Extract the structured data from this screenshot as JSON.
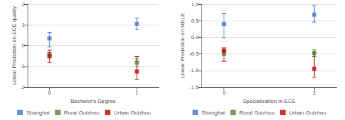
{
  "chart_data": [
    {
      "type": "scatter",
      "marker": "square",
      "grid": true,
      "legend": "bottom",
      "xlabel": "Bachelor's Degree",
      "ylabel": "Linear Prediction on ECE quality",
      "xlim": [
        -0.25,
        1.25
      ],
      "xticks": [
        0,
        1
      ],
      "ylim": [
        -2,
        2
      ],
      "yticks": [
        -2,
        -1,
        0,
        1,
        2
      ],
      "series": [
        {
          "name": "Shanghai",
          "color": "#4472C4",
          "x": [
            0,
            1
          ],
          "values": [
            0.35,
            1.05
          ],
          "yerr_lo": [
            0.42,
            0.28
          ],
          "yerr_hi": [
            0.28,
            0.28
          ]
        },
        {
          "name": "Rural Guizhou",
          "color": "#548235",
          "x": [
            0,
            1
          ],
          "values": [
            -0.42,
            -0.82
          ],
          "yerr_lo": [
            0.08,
            0.18
          ],
          "yerr_hi": [
            0.08,
            0.18
          ]
        },
        {
          "name": "Urban Guizhou",
          "color": "#C00000",
          "x": [
            0,
            1
          ],
          "values": [
            -0.52,
            -1.25
          ],
          "yerr_lo": [
            0.3,
            0.38
          ],
          "yerr_hi": [
            0.3,
            0.72
          ]
        }
      ]
    },
    {
      "type": "scatter",
      "marker": "square",
      "grid": true,
      "legend": "bottom",
      "xlabel": "Specialization in ECE",
      "ylabel": "Linear Prediction on MELE",
      "xlim": [
        -0.25,
        1.25
      ],
      "xticks": [
        0,
        1
      ],
      "ylim": [
        -1.5,
        1.0
      ],
      "yticks": [
        -1.5,
        {
          "value": -1.0,
          "label": "-1.0"
        },
        -0.5,
        {
          "value": 0.0,
          "label": "0.0"
        },
        0.5,
        {
          "value": 1.0,
          "label": "1.0"
        }
      ],
      "series": [
        {
          "name": "Shanghai",
          "color": "#4472C4",
          "x": [
            0,
            1
          ],
          "values": [
            0.4,
            0.68
          ],
          "yerr_lo": [
            0.42,
            0.22
          ],
          "yerr_hi": [
            0.32,
            0.28
          ]
        },
        {
          "name": "Rural Guizhou",
          "color": "#548235",
          "x": [
            0,
            1
          ],
          "values": [
            -0.48,
            -0.48
          ],
          "yerr_lo": [
            0.08,
            0.1
          ],
          "yerr_hi": [
            0.08,
            0.1
          ]
        },
        {
          "name": "Urban Guizhou",
          "color": "#C00000",
          "x": [
            0,
            1
          ],
          "values": [
            -0.4,
            -0.95
          ],
          "yerr_lo": [
            0.32,
            0.25
          ],
          "yerr_hi": [
            0.08,
            0.5
          ]
        }
      ]
    }
  ]
}
